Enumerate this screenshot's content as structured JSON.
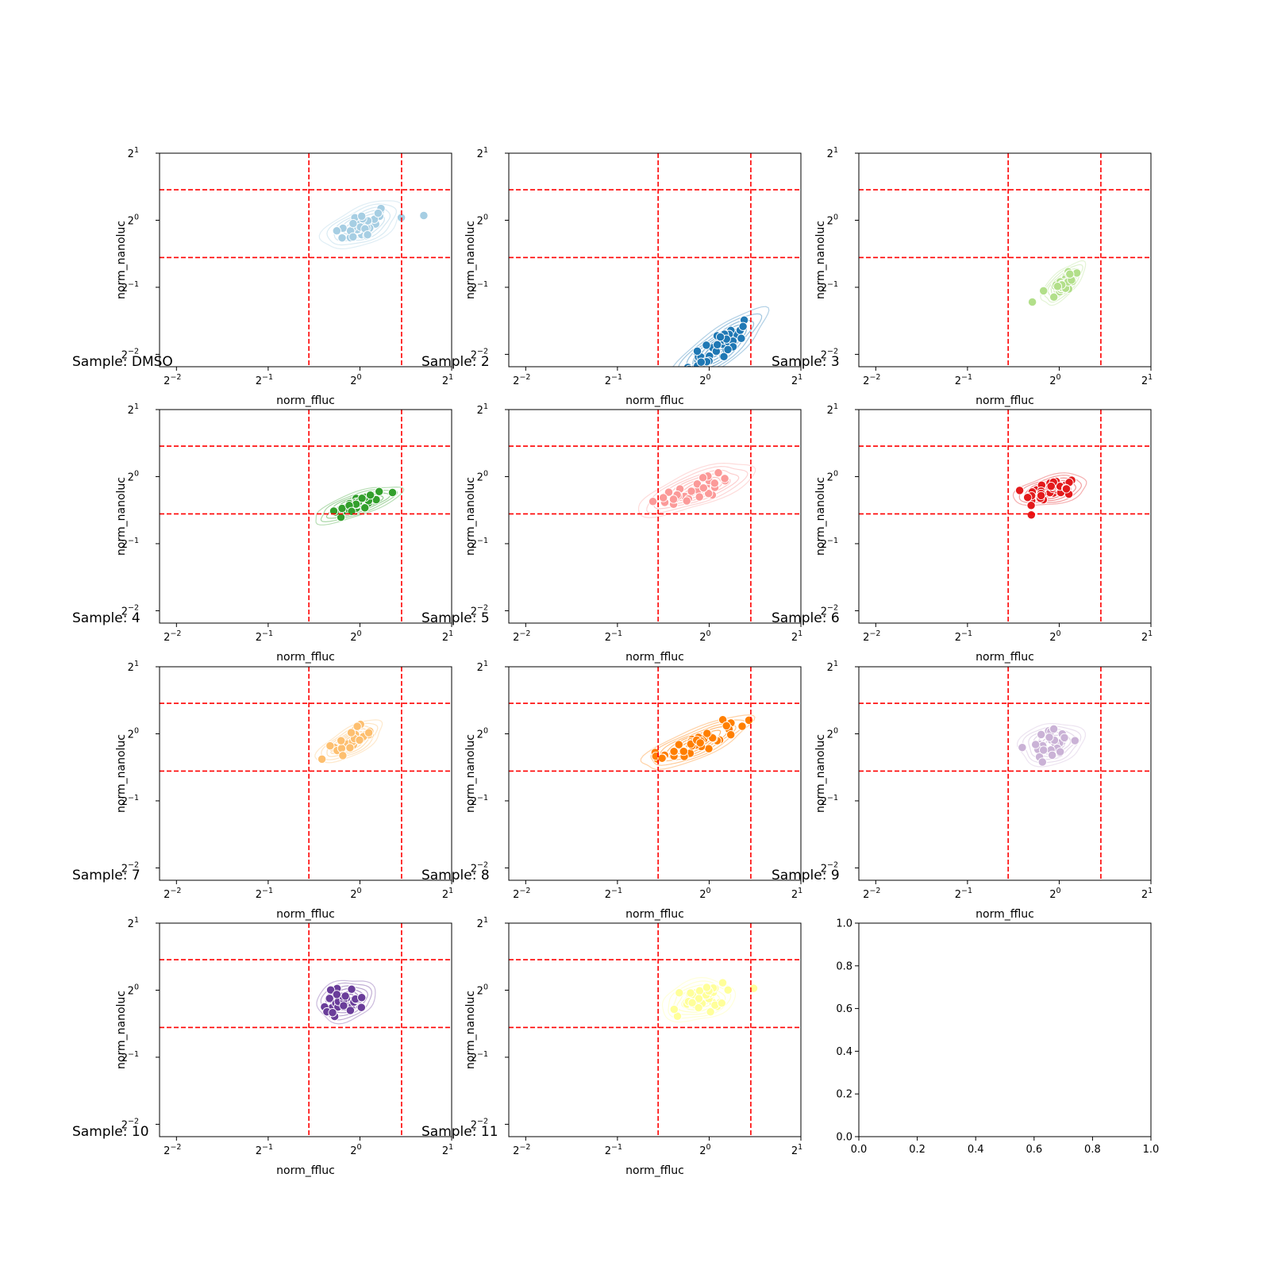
{
  "figure": {
    "grid": false,
    "x_axis": {
      "scale": "log2",
      "range": [
        0.22,
        2.0
      ],
      "tick_base": "2",
      "tick_exponents": [
        "−2",
        "−1",
        "0",
        "1"
      ],
      "tick_values": [
        0.25,
        0.5,
        1,
        2
      ]
    },
    "y_axis": {
      "scale": "log2",
      "range": [
        0.22,
        2.0
      ],
      "tick_base": "2",
      "tick_exponents": [
        "−2",
        "−1",
        "0",
        "1"
      ],
      "tick_values": [
        0.25,
        0.5,
        1,
        2
      ]
    },
    "xlabel": "norm_ffluc",
    "ylabel": "norm_nanoluc",
    "threshold_color": "#ff0000",
    "vertical_thresholds": [
      0.68,
      1.37
    ],
    "horizontal_thresholds": [
      0.68,
      1.37
    ],
    "empty_panel": {
      "x_ticks": [
        "0.0",
        "0.2",
        "0.4",
        "0.6",
        "0.8",
        "1.0"
      ],
      "y_ticks": [
        "0.0",
        "0.2",
        "0.4",
        "0.6",
        "0.8",
        "1.0"
      ]
    }
  },
  "chart_data": [
    {
      "type": "scatter",
      "sample_label": "Sample: DMSO",
      "color": "#a6cee3",
      "center": [
        1.02,
        0.95
      ],
      "spread": [
        0.11,
        0.09
      ],
      "corr": 0.55,
      "n": 40,
      "outliers": [
        [
          1.62,
          1.05
        ]
      ]
    },
    {
      "type": "scatter",
      "sample_label": "Sample: 2",
      "color": "#1f78b4",
      "center": [
        1.08,
        0.27
      ],
      "spread": [
        0.13,
        0.14
      ],
      "corr": 0.82,
      "n": 40,
      "outliers": []
    },
    {
      "type": "scatter",
      "sample_label": "Sample: 3",
      "color": "#b2df8a",
      "center": [
        1.03,
        0.52
      ],
      "spread": [
        0.06,
        0.08
      ],
      "corr": 0.7,
      "n": 30,
      "outliers": []
    },
    {
      "type": "scatter",
      "sample_label": "Sample: 4",
      "color": "#33a02c",
      "center": [
        0.98,
        0.75
      ],
      "spread": [
        0.12,
        0.07
      ],
      "corr": 0.75,
      "n": 32,
      "outliers": []
    },
    {
      "type": "scatter",
      "sample_label": "Sample: 5",
      "color": "#fb9a99",
      "center": [
        0.91,
        0.88
      ],
      "spread": [
        0.16,
        0.1
      ],
      "corr": 0.72,
      "n": 34,
      "outliers": []
    },
    {
      "type": "scatter",
      "sample_label": "Sample: 6",
      "color": "#e31a1c",
      "center": [
        0.94,
        0.87
      ],
      "spread": [
        0.1,
        0.06
      ],
      "corr": 0.4,
      "n": 40,
      "outliers": []
    },
    {
      "type": "scatter",
      "sample_label": "Sample: 7",
      "color": "#fdbf6f",
      "center": [
        0.93,
        0.92
      ],
      "spread": [
        0.09,
        0.08
      ],
      "corr": 0.7,
      "n": 30,
      "outliers": []
    },
    {
      "type": "scatter",
      "sample_label": "Sample: 8",
      "color": "#ff7f00",
      "center": [
        0.91,
        0.91
      ],
      "spread": [
        0.15,
        0.1
      ],
      "corr": 0.8,
      "n": 40,
      "outliers": [
        [
          1.35,
          1.15
        ]
      ]
    },
    {
      "type": "scatter",
      "sample_label": "Sample: 9",
      "color": "#cab2d6",
      "center": [
        0.94,
        0.9
      ],
      "spread": [
        0.09,
        0.08
      ],
      "corr": 0.2,
      "n": 30,
      "outliers": []
    },
    {
      "type": "scatter",
      "sample_label": "Sample: 10",
      "color": "#6a3d9a",
      "center": [
        0.9,
        0.9
      ],
      "spread": [
        0.08,
        0.08
      ],
      "corr": 0.2,
      "n": 30,
      "outliers": []
    },
    {
      "type": "scatter",
      "sample_label": "Sample: 11",
      "color": "#ffff99",
      "center": [
        0.92,
        0.9
      ],
      "spread": [
        0.1,
        0.08
      ],
      "corr": 0.25,
      "n": 34,
      "outliers": [
        [
          1.4,
          1.02
        ]
      ]
    },
    {
      "type": "empty",
      "sample_label": ""
    }
  ]
}
